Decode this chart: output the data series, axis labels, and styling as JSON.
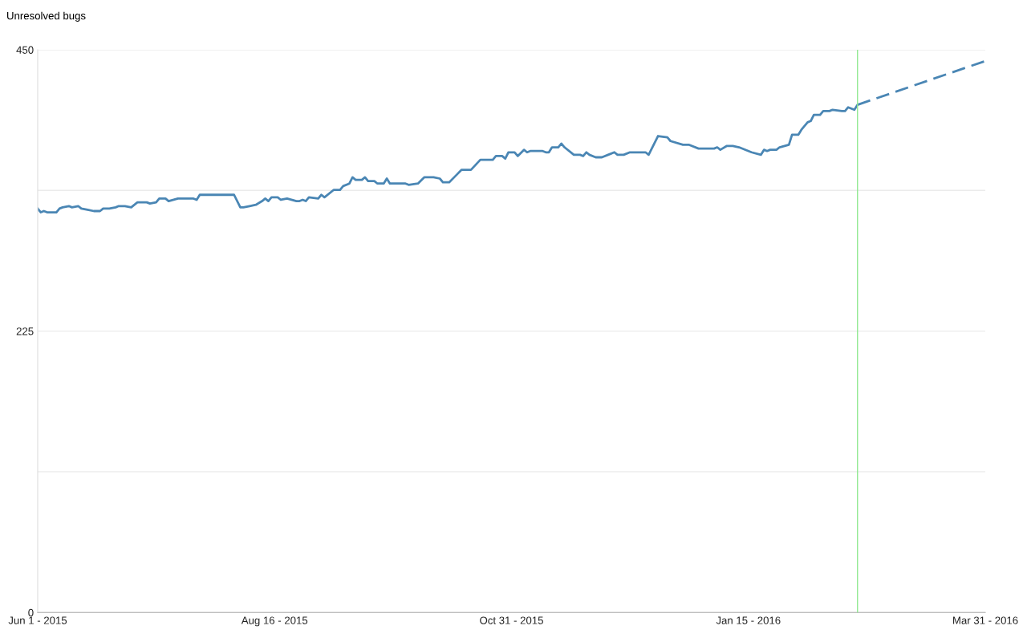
{
  "chart_data": {
    "type": "line",
    "ylabel": "Unresolved bugs",
    "xlim": [
      "2015-06-01",
      "2016-03-31"
    ],
    "xticks": [
      {
        "value": "2015-06-01",
        "label": "Jun 1 - 2015"
      },
      {
        "value": "2015-08-16",
        "label": "Aug 16 - 2015"
      },
      {
        "value": "2015-10-31",
        "label": "Oct 31 - 2015"
      },
      {
        "value": "2016-01-15",
        "label": "Jan 15 - 2016"
      },
      {
        "value": "2016-03-31",
        "label": "Mar 31 - 2016"
      }
    ],
    "ylim": [
      0,
      450
    ],
    "yticks": [
      0,
      {
        "value": 112.5,
        "label": null
      },
      225,
      {
        "value": 337.5,
        "label": null
      },
      450
    ],
    "grid": "y",
    "marker": "none",
    "ref_lines": [
      {
        "axis": "x",
        "value": "2016-02-19",
        "label": null,
        "color": "#90e890",
        "line_style": "solid"
      }
    ],
    "series": [
      {
        "color": "#4a86b4",
        "line_style": "solid",
        "x": [
          "2015-06-01",
          "2015-06-02",
          "2015-06-03",
          "2015-06-04",
          "2015-06-07",
          "2015-06-08",
          "2015-06-09",
          "2015-06-11",
          "2015-06-12",
          "2015-06-14",
          "2015-06-15",
          "2015-06-17",
          "2015-06-19",
          "2015-06-21",
          "2015-06-22",
          "2015-06-24",
          "2015-06-26",
          "2015-06-27",
          "2015-06-29",
          "2015-07-01",
          "2015-07-03",
          "2015-07-06",
          "2015-07-07",
          "2015-07-09",
          "2015-07-10",
          "2015-07-12",
          "2015-07-13",
          "2015-07-16",
          "2015-07-21",
          "2015-07-22",
          "2015-07-23",
          "2015-07-25",
          "2015-07-26",
          "2015-07-27",
          "2015-08-03",
          "2015-08-05",
          "2015-08-06",
          "2015-08-08",
          "2015-08-10",
          "2015-08-12",
          "2015-08-13",
          "2015-08-14",
          "2015-08-15",
          "2015-08-17",
          "2015-08-18",
          "2015-08-20",
          "2015-08-23",
          "2015-08-24",
          "2015-08-25",
          "2015-08-26",
          "2015-08-27",
          "2015-08-30",
          "2015-08-31",
          "2015-09-01",
          "2015-09-04",
          "2015-09-06",
          "2015-09-07",
          "2015-09-09",
          "2015-09-10",
          "2015-09-11",
          "2015-09-13",
          "2015-09-14",
          "2015-09-15",
          "2015-09-17",
          "2015-09-18",
          "2015-09-20",
          "2015-09-21",
          "2015-09-22",
          "2015-09-24",
          "2015-09-27",
          "2015-09-28",
          "2015-10-01",
          "2015-10-03",
          "2015-10-06",
          "2015-10-08",
          "2015-10-09",
          "2015-10-11",
          "2015-10-13",
          "2015-10-15",
          "2015-10-18",
          "2015-10-21",
          "2015-10-25",
          "2015-10-26",
          "2015-10-28",
          "2015-10-29",
          "2015-10-30",
          "2015-11-01",
          "2015-11-02",
          "2015-11-04",
          "2015-11-05",
          "2015-11-06",
          "2015-11-10",
          "2015-11-11",
          "2015-11-12",
          "2015-11-13",
          "2015-11-15",
          "2015-11-16",
          "2015-11-17",
          "2015-11-20",
          "2015-11-22",
          "2015-11-23",
          "2015-11-24",
          "2015-11-25",
          "2015-11-27",
          "2015-11-29",
          "2015-12-01",
          "2015-12-03",
          "2015-12-04",
          "2015-12-06",
          "2015-12-08",
          "2015-12-10",
          "2015-12-11",
          "2015-12-13",
          "2015-12-14",
          "2015-12-17",
          "2015-12-20",
          "2015-12-21",
          "2015-12-25",
          "2015-12-27",
          "2015-12-30",
          "2016-01-04",
          "2016-01-05",
          "2016-01-06",
          "2016-01-08",
          "2016-01-10",
          "2016-01-12",
          "2016-01-16",
          "2016-01-19",
          "2016-01-20",
          "2016-01-21",
          "2016-01-22",
          "2016-01-24",
          "2016-01-25",
          "2016-01-28",
          "2016-01-29",
          "2016-01-31",
          "2016-02-01",
          "2016-02-03",
          "2016-02-04",
          "2016-02-05",
          "2016-02-07",
          "2016-02-08",
          "2016-02-10",
          "2016-02-11",
          "2016-02-14",
          "2016-02-15",
          "2016-02-16",
          "2016-02-18",
          "2016-02-19"
        ],
        "values": [
          323,
          320,
          321,
          320,
          320,
          323,
          324,
          325,
          324,
          325,
          323,
          322,
          321,
          321,
          323,
          323,
          324,
          325,
          325,
          324,
          328,
          328,
          327,
          328,
          331,
          331,
          329,
          331,
          331,
          330,
          334,
          334,
          334,
          334,
          334,
          324,
          324,
          325,
          326,
          329,
          331,
          329,
          332,
          332,
          330,
          331,
          329,
          329,
          330,
          329,
          332,
          331,
          334,
          332,
          338,
          338,
          341,
          343,
          348,
          346,
          346,
          348,
          345,
          345,
          343,
          343,
          347,
          343,
          343,
          343,
          342,
          343,
          348,
          348,
          347,
          344,
          344,
          349,
          354,
          354,
          362,
          362,
          365,
          365,
          363,
          368,
          368,
          365,
          370,
          368,
          369,
          369,
          368,
          368,
          372,
          372,
          375,
          372,
          366,
          366,
          365,
          368,
          366,
          364,
          364,
          366,
          368,
          366,
          366,
          368,
          368,
          368,
          368,
          366,
          381,
          380,
          377,
          374,
          374,
          371,
          371,
          372,
          370,
          373,
          373,
          372,
          368,
          366,
          370,
          369,
          370,
          370,
          372,
          374,
          382,
          382,
          386,
          392,
          393,
          398,
          398,
          401,
          401,
          402,
          401,
          401,
          404,
          402,
          406
        ]
      },
      {
        "color": "#4a86b4",
        "line_style": "dashed",
        "x": [
          "2016-02-19",
          "2016-03-31"
        ],
        "values": [
          406,
          441
        ]
      }
    ]
  }
}
